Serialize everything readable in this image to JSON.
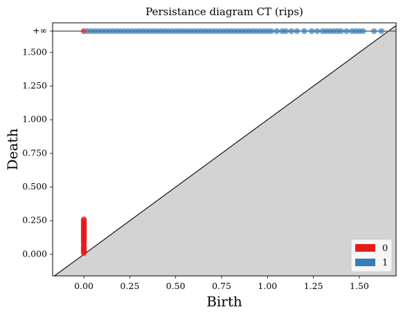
{
  "chart_data": {
    "type": "scatter",
    "title": "Persistance diagram CT (rips)",
    "xlabel": "Birth",
    "ylabel": "Death",
    "xlim": [
      -0.17,
      1.7
    ],
    "ylim": [
      -0.16,
      1.72
    ],
    "x_ticks": [
      0.0,
      0.25,
      0.5,
      0.75,
      1.0,
      1.25,
      1.5
    ],
    "x_tick_labels": [
      "0.00",
      "0.25",
      "0.50",
      "0.75",
      "1.00",
      "1.25",
      "1.50"
    ],
    "y_ticks": [
      0.0,
      0.25,
      0.5,
      0.75,
      1.0,
      1.25,
      1.5
    ],
    "y_tick_labels": [
      "0.000",
      "0.250",
      "0.500",
      "0.750",
      "1.000",
      "1.250",
      "1.500"
    ],
    "infinity_label": "+∞",
    "diagonal": true,
    "grid": false,
    "legend_position": "bottom-right",
    "series": [
      {
        "name": "0",
        "color": "#e41a1c",
        "points": [
          [
            0.0,
            0.01
          ],
          [
            0.0,
            0.02
          ],
          [
            0.0,
            0.03
          ],
          [
            0.0,
            0.04
          ],
          [
            0.0,
            0.05
          ],
          [
            0.0,
            0.06
          ],
          [
            0.0,
            0.08
          ],
          [
            0.0,
            0.09
          ],
          [
            0.0,
            0.1
          ],
          [
            0.0,
            0.11
          ],
          [
            0.0,
            0.12
          ],
          [
            0.0,
            0.13
          ],
          [
            0.0,
            0.14
          ],
          [
            0.0,
            0.15
          ],
          [
            0.0,
            0.16
          ],
          [
            0.0,
            0.17
          ],
          [
            0.0,
            0.18
          ],
          [
            0.0,
            0.19
          ],
          [
            0.0,
            0.2
          ],
          [
            0.0,
            0.21
          ],
          [
            0.0,
            0.22
          ],
          [
            0.0,
            0.23
          ],
          [
            0.0,
            0.24
          ],
          [
            0.0,
            0.25
          ],
          [
            0.0,
            0.26
          ]
        ],
        "infinite_births": [
          0.0
        ]
      },
      {
        "name": "1",
        "color": "#377eb8",
        "points": [],
        "infinite_births": [
          0.02,
          0.04,
          0.06,
          0.08,
          0.1,
          0.12,
          0.14,
          0.16,
          0.18,
          0.2,
          0.22,
          0.24,
          0.26,
          0.28,
          0.3,
          0.32,
          0.34,
          0.36,
          0.38,
          0.4,
          0.42,
          0.44,
          0.46,
          0.48,
          0.5,
          0.52,
          0.54,
          0.56,
          0.58,
          0.6,
          0.62,
          0.64,
          0.66,
          0.68,
          0.7,
          0.72,
          0.74,
          0.76,
          0.78,
          0.8,
          0.82,
          0.84,
          0.86,
          0.88,
          0.9,
          0.92,
          0.94,
          0.96,
          0.98,
          1.0,
          1.02,
          1.05,
          1.08,
          1.1,
          1.13,
          1.16,
          1.2,
          1.24,
          1.27,
          1.3,
          1.32,
          1.34,
          1.36,
          1.38,
          1.4,
          1.43,
          1.46,
          1.48,
          1.5,
          1.52,
          1.58,
          1.62
        ]
      }
    ]
  }
}
